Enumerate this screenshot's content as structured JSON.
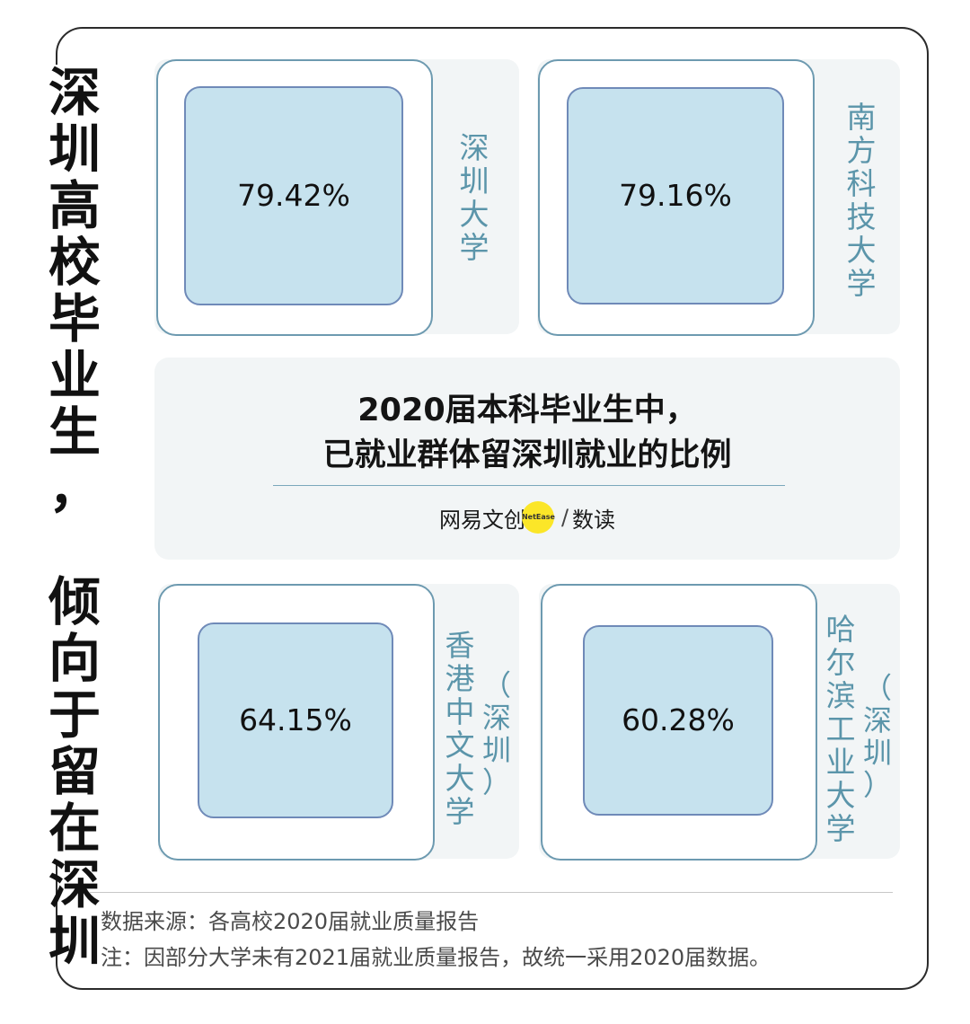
{
  "title_chars": [
    "深",
    "圳",
    "高",
    "校",
    "毕",
    "业",
    "生",
    "，",
    "",
    "倾",
    "向",
    "于",
    "留",
    "在",
    "深",
    "圳"
  ],
  "headline": {
    "line1": "2020届本科毕业生中，",
    "line2": "已就业群体留深圳就业的比例"
  },
  "brand": {
    "name": "网易文创",
    "badge": "NetEase",
    "separator": "/",
    "sub": "数读"
  },
  "footnotes": {
    "source": "数据来源：各高校2020届就业质量报告",
    "note": "注：因部分大学未有2021届就业质量报告，故统一采用2020届数据。"
  },
  "colors": {
    "card_bg": "#f2f5f6",
    "value_fill": "#c6e2ee",
    "label_color": "#5b95aa"
  },
  "chart_data": {
    "type": "bar",
    "categories": [
      "深圳大学",
      "南方科技大学",
      "香港中文大学（深圳）",
      "哈尔滨工业大学（深圳）"
    ],
    "values": [
      79.42,
      79.16,
      64.15,
      60.28
    ],
    "unit": "%",
    "value_labels": [
      "79.42%",
      "79.16%",
      "64.15%",
      "60.28%"
    ],
    "universities": [
      {
        "name_chars": [
          "深",
          "圳",
          "大",
          "学"
        ],
        "sub_chars": []
      },
      {
        "name_chars": [
          "南",
          "方",
          "科",
          "技",
          "大",
          "学"
        ],
        "sub_chars": []
      },
      {
        "name_chars": [
          "香",
          "港",
          "中",
          "文",
          "大",
          "学"
        ],
        "sub_chars": [
          "（",
          "深",
          "圳",
          "）"
        ]
      },
      {
        "name_chars": [
          "哈",
          "尔",
          "滨",
          "工",
          "业",
          "大",
          "学"
        ],
        "sub_chars": [
          "（",
          "深",
          "圳",
          "）"
        ]
      }
    ]
  }
}
